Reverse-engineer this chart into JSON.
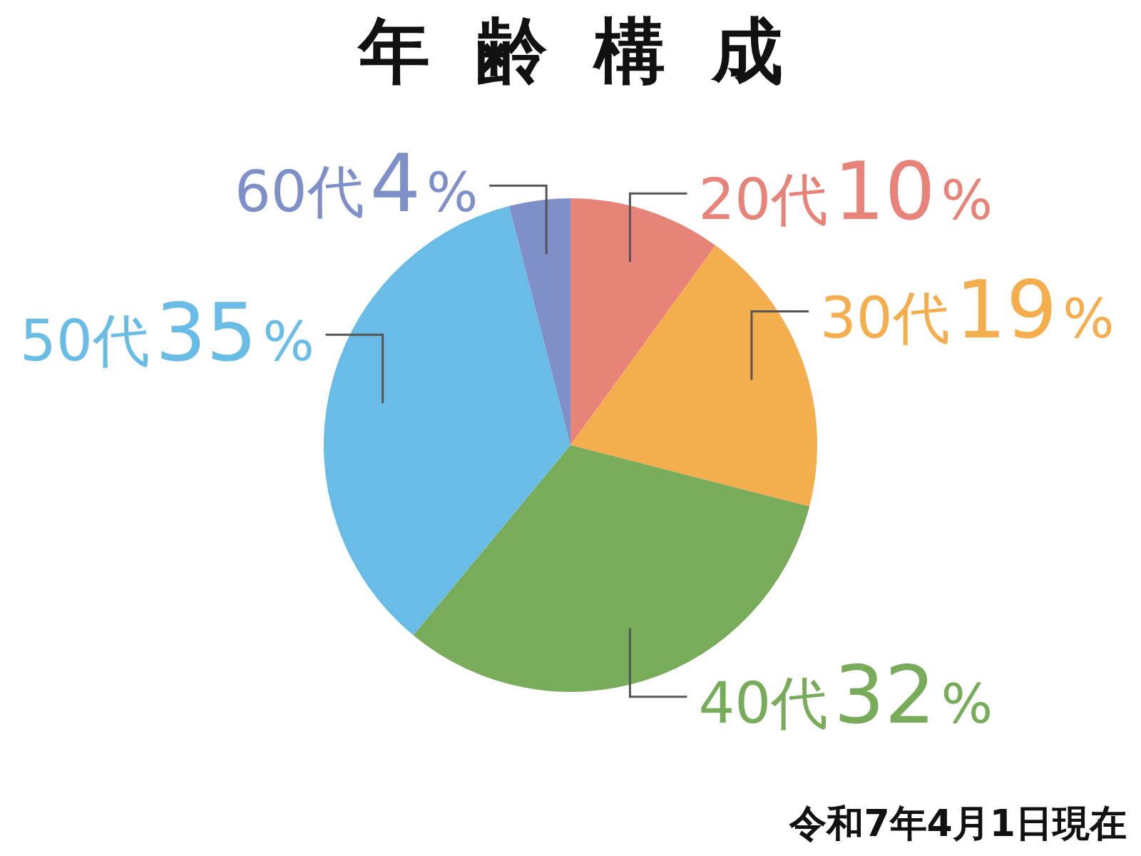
{
  "chart_data": {
    "type": "pie",
    "title": "年齢構成",
    "categories": [
      "20代",
      "30代",
      "40代",
      "50代",
      "60代"
    ],
    "values": [
      10,
      19,
      32,
      35,
      4
    ],
    "colors": [
      "#e8837a",
      "#f5ae4e",
      "#78ab5a",
      "#69bce6",
      "#7f90c8"
    ],
    "value_labels": [
      "10%",
      "19%",
      "32%",
      "35%",
      "4%"
    ],
    "legend": false,
    "annotations": [
      "令和7年4月1日現在"
    ]
  }
}
